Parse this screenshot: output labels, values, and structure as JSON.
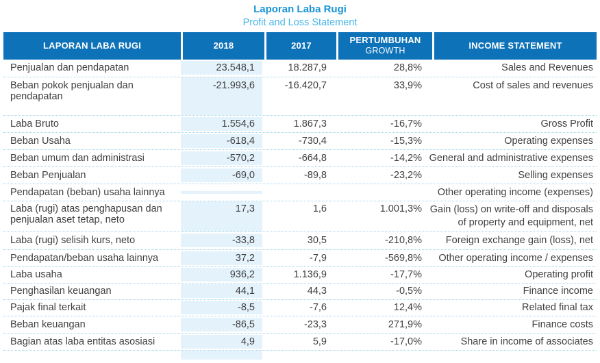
{
  "title": "Laporan Laba Rugi",
  "subtitle": "Profit and Loss Statement",
  "colors": {
    "header_blue": "#0e72b9",
    "title_blue": "#1995d4",
    "subtitle_blue": "#47b6e8",
    "column_band_blue": "#e4f2fb",
    "dotted_line_blue": "#9fd3ec",
    "body_text": "#3f3f41"
  },
  "table": {
    "headers": {
      "col_id": "LAPORAN LABA RUGI",
      "col_2018": "2018",
      "col_2017": "2017",
      "col_growth_line1": "PERTUMBUHAN",
      "col_growth_line2": "GROWTH",
      "col_en": "INCOME STATEMENT"
    },
    "rows": [
      {
        "id": "Penjualan dan pendapatan",
        "y2018": "23.548,1",
        "y2017": "18.287,9",
        "growth": "28,8%",
        "en": "Sales and Revenues"
      },
      {
        "id": "Beban pokok penjualan dan pendapatan",
        "y2018": "-21.993,6",
        "y2017": "-16.420,7",
        "growth": "33,9%",
        "en": "Cost of sales and revenues"
      },
      {
        "id": "Laba Bruto",
        "y2018": "1.554,6",
        "y2017": "1.867,3",
        "growth": "-16,7%",
        "en": "Gross Profit"
      },
      {
        "id": "Beban Usaha",
        "y2018": "-618,4",
        "y2017": "-730,4",
        "growth": "-15,3%",
        "en": "Operating expenses"
      },
      {
        "id": "Beban umum dan administrasi",
        "y2018": "-570,2",
        "y2017": "-664,8",
        "growth": "-14,2%",
        "en": "General and administrative expenses"
      },
      {
        "id": "Beban Penjualan",
        "y2018": "-69,0",
        "y2017": "-89,8",
        "growth": "-23,2%",
        "en": "Selling expenses"
      },
      {
        "id": "Pendapatan (beban) usaha lainnya",
        "y2018": "",
        "y2017": "",
        "growth": "",
        "en": "Other operating income (expenses)"
      },
      {
        "id": "Laba (rugi) atas penghapusan dan penjualan aset tetap, neto",
        "y2018": "17,3",
        "y2017": "1,6",
        "growth": "1.001,3%",
        "en": "Gain (loss) on write-off and disposals of property and equipment, net"
      },
      {
        "id": "Laba (rugi) selisih kurs, neto",
        "y2018": "-33,8",
        "y2017": "30,5",
        "growth": "-210,8%",
        "en": "Foreign exchange gain (loss), net"
      },
      {
        "id": "Pendapatan/beban usaha lainnya",
        "y2018": "37,2",
        "y2017": "-7,9",
        "growth": "-569,8%",
        "en": "Other operating income / expenses"
      },
      {
        "id": "Laba usaha",
        "y2018": "936,2",
        "y2017": "1.136,9",
        "growth": "-17,7%",
        "en": "Operating profit"
      },
      {
        "id": "Penghasilan keuangan",
        "y2018": "44,1",
        "y2017": "44,3",
        "growth": "-0,5%",
        "en": "Finance income"
      },
      {
        "id": "Pajak final terkait",
        "y2018": "-8,5",
        "y2017": "-7,6",
        "growth": "12,4%",
        "en": "Related final tax"
      },
      {
        "id": "Beban keuangan",
        "y2018": "-86,5",
        "y2017": "-23,3",
        "growth": "271,9%",
        "en": "Finance costs"
      },
      {
        "id": "Bagian atas laba entitas asosiasi",
        "y2018": "4,9",
        "y2017": "5,9",
        "growth": "-17,0%",
        "en": "Share in income of associates"
      }
    ]
  }
}
